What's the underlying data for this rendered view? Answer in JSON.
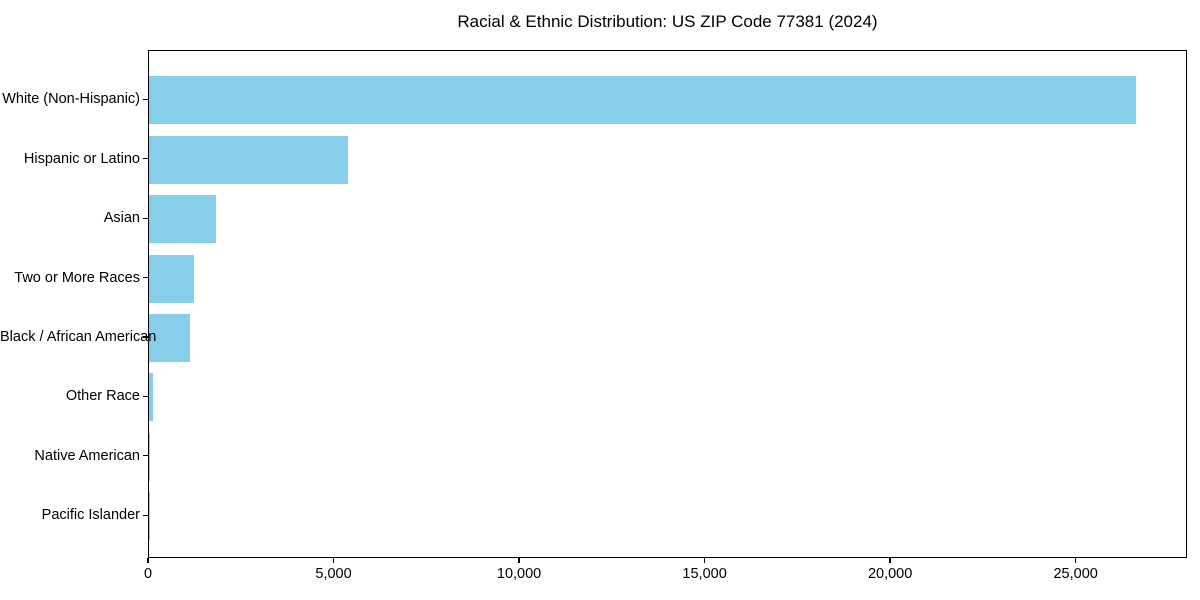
{
  "figure": {
    "background": "#ffffff"
  },
  "chart_data": {
    "type": "bar",
    "orientation": "horizontal",
    "title": "Racial & Ethnic Distribution: US ZIP Code 77381 (2024)",
    "categories": [
      "White (Non-Hispanic)",
      "Hispanic or Latino",
      "Asian",
      "Two or More Races",
      "Black / African American",
      "Other Race",
      "Native American",
      "Pacific Islander"
    ],
    "values": [
      26650,
      5370,
      1810,
      1210,
      1100,
      100,
      25,
      10
    ],
    "xlabel": "",
    "ylabel": "",
    "xlim": [
      0,
      28000
    ],
    "xticks": {
      "values": [
        0,
        5000,
        10000,
        15000,
        20000,
        25000
      ],
      "labels": [
        "0",
        "5,000",
        "10,000",
        "15,000",
        "20,000",
        "25,000"
      ]
    },
    "grid": false,
    "legend": "none",
    "bar_color": "#87CEEB",
    "axis_color": "#000000",
    "text_color": "#000000"
  }
}
